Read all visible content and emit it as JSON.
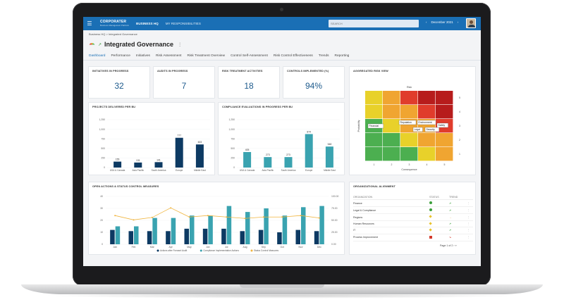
{
  "topbar": {
    "brand": "CORPORATER",
    "brand_sub": "Business Management Platform",
    "nav_primary": "BUSINESS HQ",
    "nav_secondary": "MY RESPONSIBILITIES",
    "search_placeholder": "SEARCH",
    "date_label": "December 2021"
  },
  "breadcrumb": {
    "home": "Business HQ",
    "sep": ">",
    "current": "Integrated Governance"
  },
  "page_title": "Integrated Governance",
  "tabs": [
    "Dashboard",
    "Performance",
    "Initiatives",
    "Risk Assessment",
    "Risk Treatment Overview",
    "Control Self-Assessment",
    "Risk Control Effectiveness",
    "Trends",
    "Reporting"
  ],
  "kpis": [
    {
      "label": "INITIATIVES IN PROGRESS",
      "value": "32"
    },
    {
      "label": "AUDITS IN PROGRESS",
      "value": "7"
    },
    {
      "label": "RISK TREATMENT ACTIVITIES",
      "value": "18"
    },
    {
      "label": "CONTROLS IMPLEMENTED (%)",
      "value": "94%"
    }
  ],
  "projects_chart": {
    "title": "PROJECTS DELIVERED PER BU",
    "chart_data": {
      "type": "bar",
      "categories": [
        "USA & Canada",
        "Asia Pacific",
        "South America",
        "Europe",
        "Middle East"
      ],
      "values": [
        155,
        131,
        141,
        777,
        603
      ],
      "ylim": [
        0,
        1250
      ],
      "yticks": [
        "0",
        "250",
        "500",
        "750",
        "1,000",
        "1,250"
      ],
      "colors": [
        "#0d3a63",
        "#0d3a63",
        "#0d3a63",
        "#0d3a63",
        "#0d3a63"
      ]
    }
  },
  "compliance_chart": {
    "title": "COMPLIANCE EVALUATIONS IN PROGRESS PER BU",
    "chart_data": {
      "type": "bar",
      "categories": [
        "USA & Canada",
        "Asia Pacific",
        "South America",
        "Europe",
        "Middle East"
      ],
      "values": [
        405,
        273,
        273,
        874,
        548
      ],
      "ylim": [
        0,
        1250
      ],
      "yticks": [
        "0",
        "250",
        "500",
        "750",
        "1,000",
        "1,250"
      ],
      "color": "#3aa3b0"
    }
  },
  "risk_view": {
    "title": "AGGREGATED RISK VIEW",
    "top_label": "Risk",
    "x_label": "Consequence",
    "y_label": "Probability",
    "axis_ticks": [
      "1",
      "2",
      "3",
      "4",
      "5"
    ],
    "tags": [
      "Financial",
      "Reputation",
      "Environment",
      "Legal",
      "Security",
      "Safety"
    ],
    "colors": {
      "green": "#4caf50",
      "yellow": "#e8d12a",
      "orange": "#f0a531",
      "red": "#e03c2c",
      "darkred": "#b71c1c"
    }
  },
  "open_actions": {
    "title": "OPEN ACTIONS & STATUS CONTROL MEASURES",
    "chart_data": {
      "type": "bar",
      "categories": [
        "Jan",
        "Feb",
        "Mar",
        "Apr",
        "May",
        "Jun",
        "Jul",
        "Aug",
        "Sep",
        "Oct",
        "Nov",
        "Dec"
      ],
      "series": [
        {
          "name": "Actions after Forward Audit",
          "values": [
            12,
            11,
            11,
            11,
            13,
            13,
            13,
            11,
            12,
            10,
            12,
            11
          ],
          "color": "#0d3a63"
        },
        {
          "name": "Compliance Implementation Actions",
          "values": [
            15,
            15,
            22,
            22,
            24,
            24,
            32,
            27,
            30,
            24,
            31,
            32
          ],
          "color": "#3aa3b0"
        },
        {
          "name": "Status Control Measures",
          "values": [
            60,
            51,
            56,
            76,
            57,
            60,
            57,
            54,
            57,
            57,
            60,
            55
          ],
          "color": "#f0b53f",
          "axis": "right"
        }
      ],
      "ylim": [
        0,
        40
      ],
      "yticks": [
        "0",
        "10",
        "20",
        "30",
        "40"
      ],
      "y2lim": [
        0,
        100
      ],
      "y2ticks": [
        "0.00",
        "25.00",
        "50.00",
        "75.00",
        "100.00"
      ]
    }
  },
  "org_alignment": {
    "title": "ORGANIZATIONAL ALIGNMENT",
    "columns": [
      "ORGANIZATION",
      "STATUS",
      "TREND"
    ],
    "rows": [
      {
        "name": "Finance",
        "status": "green",
        "trend": "↗"
      },
      {
        "name": "Legal & Compliance",
        "status": "green",
        "trend": "↗"
      },
      {
        "name": "Regions",
        "status": "yellow",
        "trend": "→"
      },
      {
        "name": "Human Resources",
        "status": "yellow",
        "trend": "↗"
      },
      {
        "name": "IT",
        "status": "yellow",
        "trend": "↗"
      },
      {
        "name": "Process Improvement",
        "status": "red",
        "trend": "↘"
      }
    ],
    "pager": "Page 1 of 2"
  }
}
